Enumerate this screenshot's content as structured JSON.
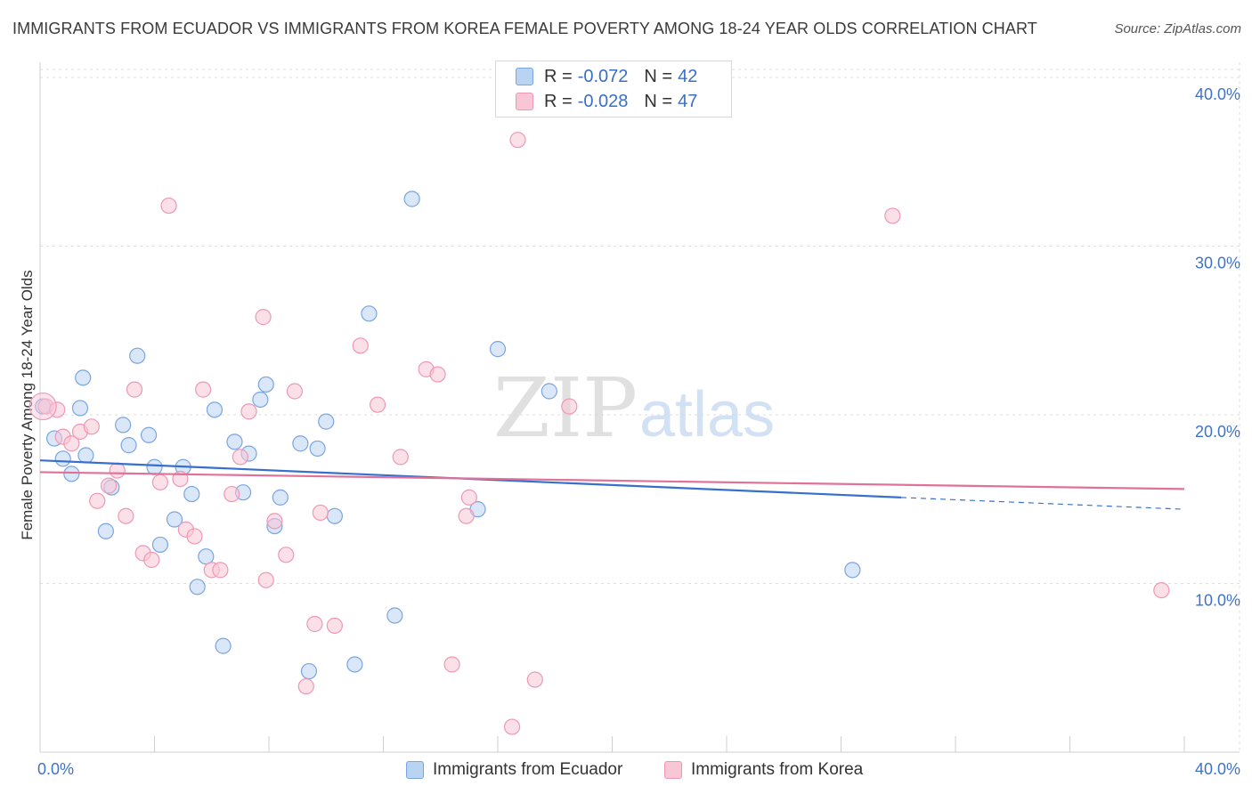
{
  "title": "IMMIGRANTS FROM ECUADOR VS IMMIGRANTS FROM KOREA FEMALE POVERTY AMONG 18-24 YEAR OLDS CORRELATION CHART",
  "source": "Source: ZipAtlas.com",
  "watermark": {
    "zip": "ZIP",
    "atlas": "atlas"
  },
  "legend": {
    "ecuador": {
      "r_label": "R =",
      "r_value": "-0.072",
      "n_label": "N =",
      "n_value": "42"
    },
    "korea": {
      "r_label": "R =",
      "r_value": "-0.028",
      "n_label": "N =",
      "n_value": "47"
    }
  },
  "colors": {
    "ecuador_fill": "#b9d3f3",
    "ecuador_stroke": "#7aa5e0",
    "ecuador_line": "#3670cc",
    "korea_fill": "#f9c6d6",
    "korea_stroke": "#ee98b6",
    "korea_line": "#e0729a",
    "tick_label": "#3f73c6",
    "grid": "#dedede"
  },
  "chart_data": {
    "type": "scatter",
    "title": "IMMIGRANTS FROM ECUADOR VS IMMIGRANTS FROM KOREA FEMALE POVERTY AMONG 18-24 YEAR OLDS CORRELATION CHART",
    "xlabel": "",
    "ylabel": "Female Poverty Among 18-24 Year Olds",
    "xlim": [
      0,
      40
    ],
    "ylim": [
      0,
      40.9
    ],
    "x_tick_labels": [
      "0.0%",
      "40.0%"
    ],
    "y_ticks": [
      10,
      20,
      30,
      40
    ],
    "y_tick_labels": [
      "10.0%",
      "20.0%",
      "30.0%",
      "40.0%"
    ],
    "series": [
      {
        "name": "Immigrants from Ecuador",
        "r": -0.072,
        "n": 42,
        "trend": {
          "x0": 0,
          "y0": 17.3,
          "x1": 30.1,
          "y1": 15.1,
          "x_dash_end": 40,
          "y_dash_end": 14.4
        },
        "points": [
          [
            0.1,
            20.5
          ],
          [
            0.5,
            18.6
          ],
          [
            0.8,
            17.4
          ],
          [
            1.1,
            16.5
          ],
          [
            1.4,
            20.4
          ],
          [
            1.5,
            22.2
          ],
          [
            1.6,
            17.6
          ],
          [
            2.3,
            13.1
          ],
          [
            2.5,
            15.7
          ],
          [
            2.9,
            19.4
          ],
          [
            3.1,
            18.2
          ],
          [
            3.4,
            23.5
          ],
          [
            3.8,
            18.8
          ],
          [
            4.0,
            16.9
          ],
          [
            4.2,
            12.3
          ],
          [
            4.7,
            13.8
          ],
          [
            5.0,
            16.9
          ],
          [
            5.3,
            15.3
          ],
          [
            5.5,
            9.8
          ],
          [
            5.8,
            11.6
          ],
          [
            6.1,
            20.3
          ],
          [
            6.4,
            6.3
          ],
          [
            6.8,
            18.4
          ],
          [
            7.1,
            15.4
          ],
          [
            7.3,
            17.7
          ],
          [
            7.7,
            20.9
          ],
          [
            7.9,
            21.8
          ],
          [
            8.2,
            13.4
          ],
          [
            8.4,
            15.1
          ],
          [
            9.1,
            18.3
          ],
          [
            9.4,
            4.8
          ],
          [
            9.7,
            18.0
          ],
          [
            10.0,
            19.6
          ],
          [
            10.3,
            14.0
          ],
          [
            11.0,
            5.2
          ],
          [
            11.5,
            26.0
          ],
          [
            12.4,
            8.1
          ],
          [
            13.0,
            32.8
          ],
          [
            15.3,
            14.4
          ],
          [
            16.0,
            23.9
          ],
          [
            17.8,
            21.4
          ],
          [
            28.4,
            10.8
          ]
        ]
      },
      {
        "name": "Immigrants from Korea",
        "r": -0.028,
        "n": 47,
        "trend": {
          "x0": 0,
          "y0": 16.6,
          "x1": 40,
          "y1": 15.6
        },
        "points": [
          [
            0.2,
            20.5
          ],
          [
            0.6,
            20.3
          ],
          [
            0.8,
            18.7
          ],
          [
            1.1,
            18.3
          ],
          [
            1.4,
            19.0
          ],
          [
            1.8,
            19.3
          ],
          [
            2.0,
            14.9
          ],
          [
            2.4,
            15.8
          ],
          [
            2.7,
            16.7
          ],
          [
            3.0,
            14.0
          ],
          [
            3.3,
            21.5
          ],
          [
            3.6,
            11.8
          ],
          [
            3.9,
            11.4
          ],
          [
            4.2,
            16.0
          ],
          [
            4.5,
            32.4
          ],
          [
            4.9,
            16.2
          ],
          [
            5.1,
            13.2
          ],
          [
            5.4,
            12.8
          ],
          [
            5.7,
            21.5
          ],
          [
            6.0,
            10.8
          ],
          [
            6.3,
            10.8
          ],
          [
            6.7,
            15.3
          ],
          [
            7.0,
            17.5
          ],
          [
            7.3,
            20.2
          ],
          [
            7.8,
            25.8
          ],
          [
            7.9,
            10.2
          ],
          [
            8.2,
            13.7
          ],
          [
            8.6,
            11.7
          ],
          [
            8.9,
            21.4
          ],
          [
            9.3,
            3.9
          ],
          [
            9.6,
            7.6
          ],
          [
            9.8,
            14.2
          ],
          [
            10.3,
            7.5
          ],
          [
            11.2,
            24.1
          ],
          [
            11.8,
            20.6
          ],
          [
            12.6,
            17.5
          ],
          [
            13.5,
            22.7
          ],
          [
            13.9,
            22.4
          ],
          [
            14.4,
            5.2
          ],
          [
            14.9,
            14.0
          ],
          [
            15.0,
            15.1
          ],
          [
            16.5,
            1.5
          ],
          [
            16.7,
            36.3
          ],
          [
            17.3,
            4.3
          ],
          [
            18.5,
            20.5
          ],
          [
            29.8,
            31.8
          ],
          [
            39.2,
            9.6
          ]
        ]
      }
    ]
  },
  "bottom_legend": {
    "ecuador": "Immigrants from Ecuador",
    "korea": "Immigrants from Korea"
  }
}
